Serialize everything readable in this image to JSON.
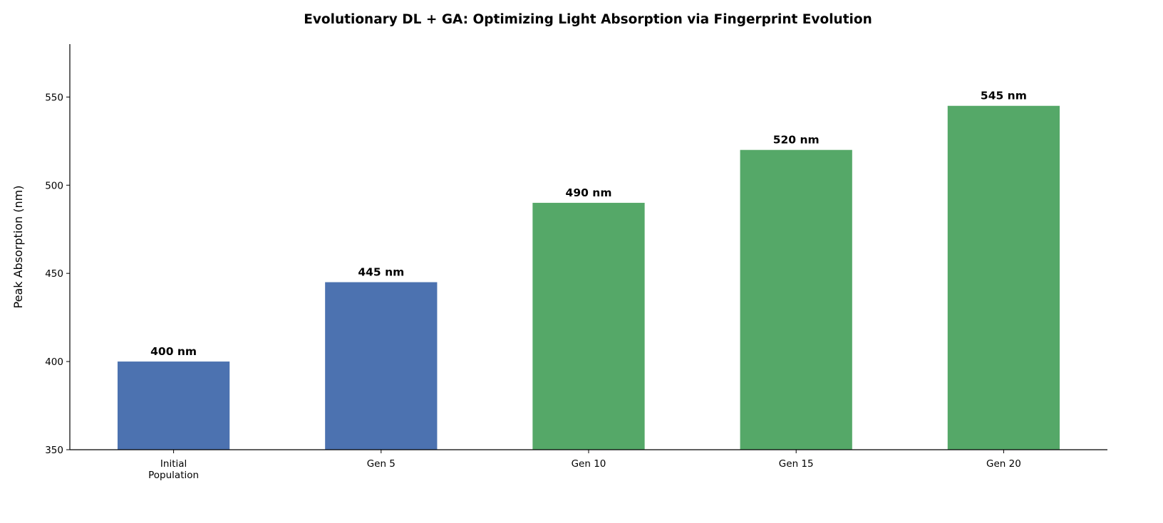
{
  "chart_data": {
    "type": "bar",
    "title": "Evolutionary DL + GA: Optimizing Light Absorption via Fingerprint Evolution",
    "xlabel": "",
    "ylabel": "Peak Absorption (nm)",
    "categories": [
      "Initial\nPopulation",
      "Gen 5",
      "Gen 10",
      "Gen 15",
      "Gen 20"
    ],
    "values": [
      400,
      445,
      490,
      520,
      545
    ],
    "data_labels": [
      "400 nm",
      "445 nm",
      "490 nm",
      "520 nm",
      "545 nm"
    ],
    "bar_colors": [
      "#4c72b0",
      "#4c72b0",
      "#55a868",
      "#55a868",
      "#55a868"
    ],
    "ylim": [
      350,
      580
    ],
    "yticks": [
      350,
      400,
      450,
      500,
      550
    ],
    "grid": false,
    "legend": "none"
  }
}
